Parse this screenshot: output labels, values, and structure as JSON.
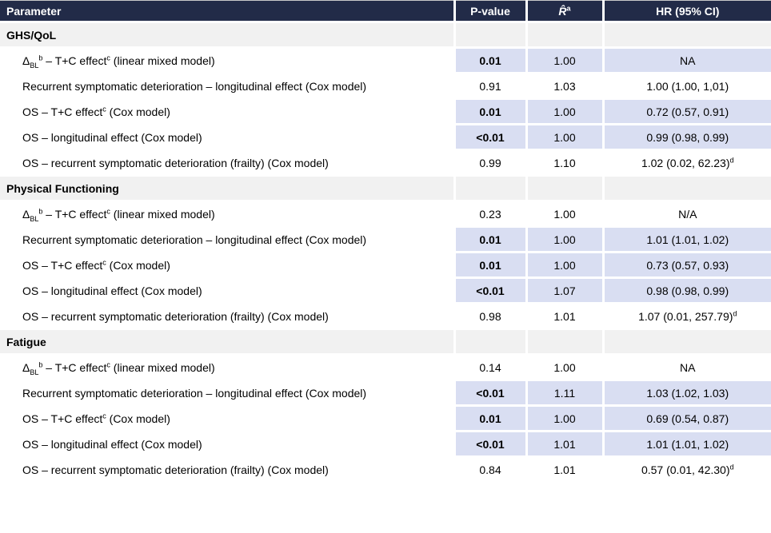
{
  "colors": {
    "header_bg": "#222b48",
    "header_text": "#ffffff",
    "highlight_bg": "#d9def2",
    "section_bg": "#f1f1f1",
    "row_bg": "#ffffff",
    "text": "#000000"
  },
  "table": {
    "columns": [
      {
        "key": "parameter",
        "label": "Parameter",
        "align": "left"
      },
      {
        "key": "p-value",
        "label": "P-value"
      },
      {
        "key": "r-hat",
        "label": "R̂",
        "sup": "a",
        "italic": true
      },
      {
        "key": "hr-ci",
        "label": "HR (95% CI)"
      }
    ],
    "sections": [
      {
        "title": "GHS/QoL",
        "rows": [
          {
            "param": [
              {
                "t": "Δ"
              },
              {
                "sub": "BL"
              },
              {
                "sup": "b"
              },
              {
                "t": " – T+C effect"
              },
              {
                "sup": "c"
              },
              {
                "t": " (linear mixed model)"
              }
            ],
            "p": "0.01",
            "p_bold": true,
            "r": "1.00",
            "hr": "NA",
            "hr_sup": "",
            "highlight": true
          },
          {
            "param": [
              {
                "t": "Recurrent symptomatic deterioration – longitudinal effect (Cox model)"
              }
            ],
            "p": "0.91",
            "p_bold": false,
            "r": "1.03",
            "hr": "1.00 (1.00, 1,01)",
            "hr_sup": "",
            "highlight": false
          },
          {
            "param": [
              {
                "t": "OS – T+C effect"
              },
              {
                "sup": "c"
              },
              {
                "t": " (Cox model)"
              }
            ],
            "p": "0.01",
            "p_bold": true,
            "r": "1.00",
            "hr": "0.72 (0.57, 0.91)",
            "hr_sup": "",
            "highlight": true
          },
          {
            "param": [
              {
                "t": "OS – longitudinal effect (Cox model)"
              }
            ],
            "p": "<0.01",
            "p_bold": true,
            "r": "1.00",
            "hr": "0.99 (0.98, 0.99)",
            "hr_sup": "",
            "highlight": true
          },
          {
            "param": [
              {
                "t": "OS – recurrent symptomatic deterioration (frailty) (Cox model)"
              }
            ],
            "p": "0.99",
            "p_bold": false,
            "r": "1.10",
            "hr": "1.02 (0.02, 62.23)",
            "hr_sup": "d",
            "highlight": false
          }
        ]
      },
      {
        "title": "Physical Functioning",
        "rows": [
          {
            "param": [
              {
                "t": "Δ"
              },
              {
                "sub": "BL"
              },
              {
                "sup": "b"
              },
              {
                "t": " – T+C effect"
              },
              {
                "sup": "c"
              },
              {
                "t": " (linear mixed model)"
              }
            ],
            "p": "0.23",
            "p_bold": false,
            "r": "1.00",
            "hr": "N/A",
            "hr_sup": "",
            "highlight": false
          },
          {
            "param": [
              {
                "t": "Recurrent symptomatic deterioration – longitudinal effect (Cox model)"
              }
            ],
            "p": "0.01",
            "p_bold": true,
            "r": "1.00",
            "hr": "1.01 (1.01, 1.02)",
            "hr_sup": "",
            "highlight": true
          },
          {
            "param": [
              {
                "t": "OS – T+C effect"
              },
              {
                "sup": "c"
              },
              {
                "t": " (Cox model)"
              }
            ],
            "p": "0.01",
            "p_bold": true,
            "r": "1.00",
            "hr": "0.73 (0.57, 0.93)",
            "hr_sup": "",
            "highlight": true
          },
          {
            "param": [
              {
                "t": "OS – longitudinal effect (Cox model)"
              }
            ],
            "p": "<0.01",
            "p_bold": true,
            "r": "1.07",
            "hr": "0.98 (0.98, 0.99)",
            "hr_sup": "",
            "highlight": true
          },
          {
            "param": [
              {
                "t": "OS – recurrent symptomatic deterioration (frailty) (Cox model)"
              }
            ],
            "p": "0.98",
            "p_bold": false,
            "r": "1.01",
            "hr": "1.07 (0.01, 257.79)",
            "hr_sup": "d",
            "highlight": false
          }
        ]
      },
      {
        "title": "Fatigue",
        "rows": [
          {
            "param": [
              {
                "t": "Δ"
              },
              {
                "sub": "BL"
              },
              {
                "sup": "b"
              },
              {
                "t": " – T+C effect"
              },
              {
                "sup": "c"
              },
              {
                "t": " (linear mixed model)"
              }
            ],
            "p": "0.14",
            "p_bold": false,
            "r": "1.00",
            "hr": "NA",
            "hr_sup": "",
            "highlight": false
          },
          {
            "param": [
              {
                "t": "Recurrent symptomatic deterioration – longitudinal effect (Cox model)"
              }
            ],
            "p": "<0.01",
            "p_bold": true,
            "r": "1.11",
            "hr": "1.03 (1.02, 1.03)",
            "hr_sup": "",
            "highlight": true
          },
          {
            "param": [
              {
                "t": "OS – T+C effect"
              },
              {
                "sup": "c"
              },
              {
                "t": " (Cox model)"
              }
            ],
            "p": "0.01",
            "p_bold": true,
            "r": "1.00",
            "hr": "0.69 (0.54, 0.87)",
            "hr_sup": "",
            "highlight": true
          },
          {
            "param": [
              {
                "t": "OS – longitudinal effect (Cox model)"
              }
            ],
            "p": "<0.01",
            "p_bold": true,
            "r": "1.01",
            "hr": "1.01 (1.01, 1.02)",
            "hr_sup": "",
            "highlight": true
          },
          {
            "param": [
              {
                "t": "OS – recurrent symptomatic deterioration (frailty) (Cox model)"
              }
            ],
            "p": "0.84",
            "p_bold": false,
            "r": "1.01",
            "hr": "0.57 (0.01, 42.30)",
            "hr_sup": "d",
            "highlight": false
          }
        ]
      }
    ]
  }
}
